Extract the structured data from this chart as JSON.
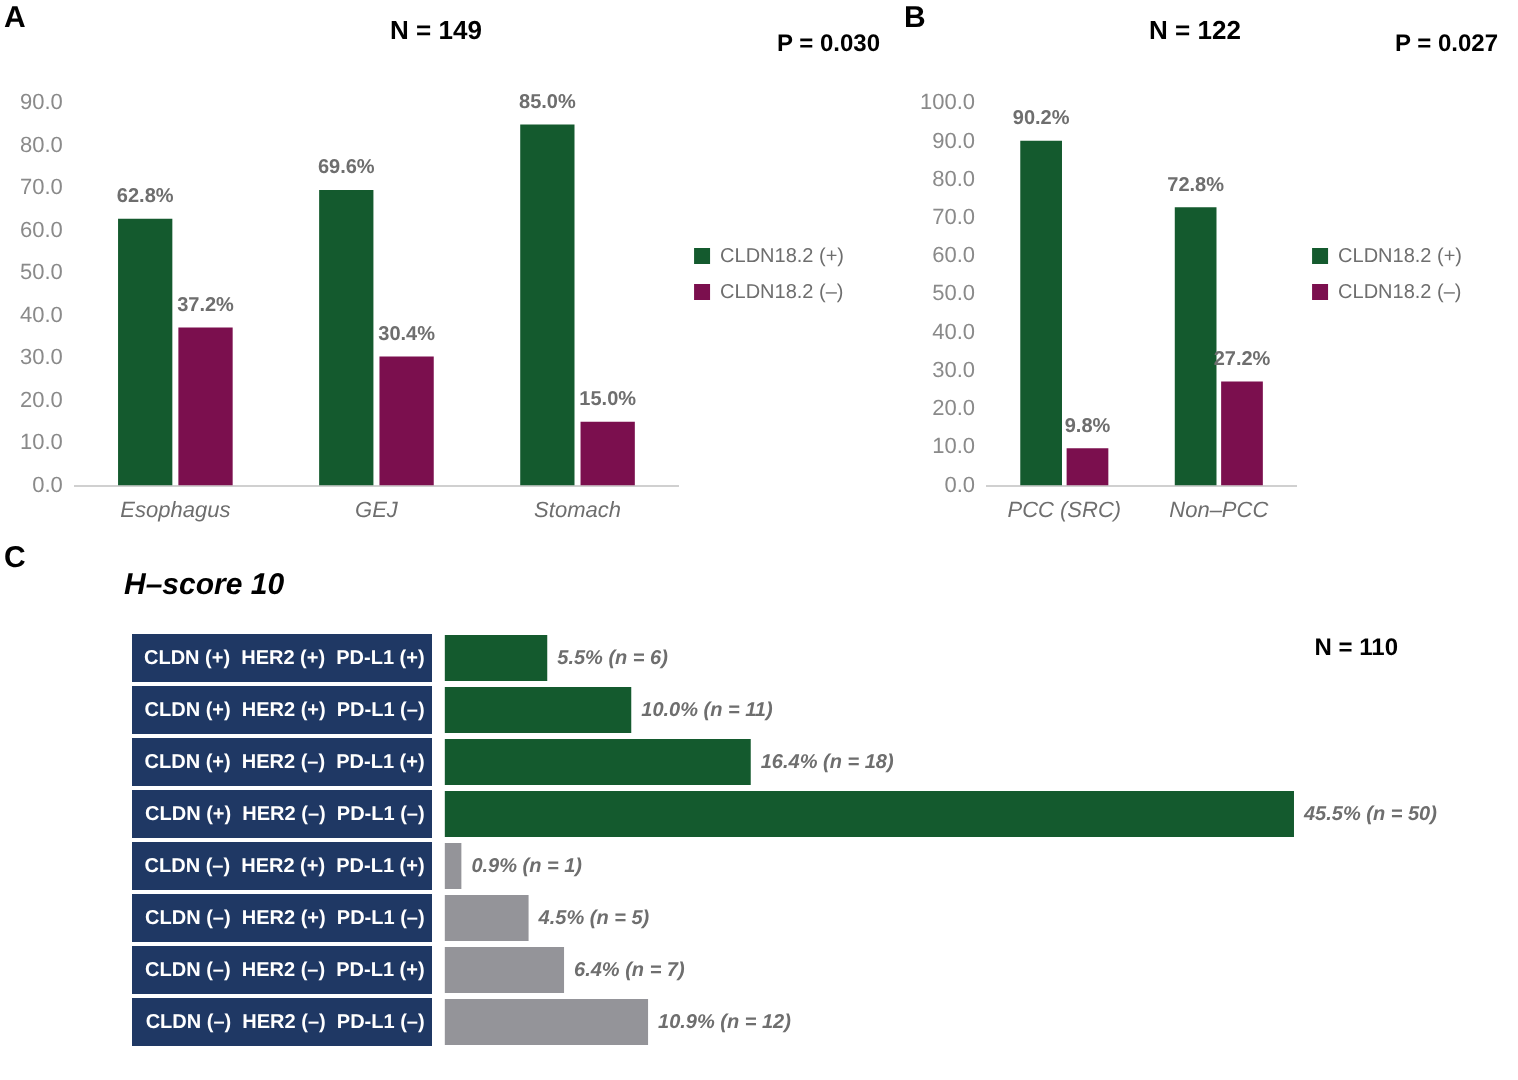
{
  "chart_data": [
    {
      "type": "bar",
      "title": "N = 149",
      "annotations": [
        "A",
        "P = 0.030"
      ],
      "categories": [
        "Esophagus",
        "GEJ",
        "Stomach"
      ],
      "series": [
        {
          "name": "CLDN18.2 (+)",
          "color": "#145a2e",
          "values": [
            62.8,
            69.6,
            85.0
          ],
          "value_labels": [
            "62.8%",
            "69.6%",
            "85.0%"
          ]
        },
        {
          "name": "CLDN18.2 (–)",
          "color": "#7b0f4e",
          "values": [
            37.2,
            30.4,
            15.0
          ],
          "value_labels": [
            "37.2%",
            "30.4%",
            "15.0%"
          ]
        }
      ],
      "ylim": [
        0,
        90
      ],
      "yticks": [
        {
          "value": 0,
          "label": "0.0"
        },
        {
          "value": 10,
          "label": "10.0"
        },
        {
          "value": 20,
          "label": "20.0"
        },
        {
          "value": 30,
          "label": "30.0"
        },
        {
          "value": 40,
          "label": "40.0"
        },
        {
          "value": 50,
          "label": "50.0"
        },
        {
          "value": 60,
          "label": "60.0"
        },
        {
          "value": 70,
          "label": "70.0"
        },
        {
          "value": 80,
          "label": "80.0"
        },
        {
          "value": 90,
          "label": "90.0"
        }
      ],
      "legend": "right"
    },
    {
      "type": "bar",
      "title": "N = 122",
      "annotations": [
        "B",
        "P = 0.027"
      ],
      "categories": [
        "PCC (SRC)",
        "Non–PCC"
      ],
      "series": [
        {
          "name": "CLDN18.2 (+)",
          "color": "#145a2e",
          "values": [
            90.2,
            72.8
          ],
          "value_labels": [
            "90.2%",
            "72.8%"
          ]
        },
        {
          "name": "CLDN18.2 (–)",
          "color": "#7b0f4e",
          "values": [
            9.8,
            27.2
          ],
          "value_labels": [
            "9.8%",
            "27.2%"
          ]
        }
      ],
      "ylim": [
        0,
        100
      ],
      "yticks": [
        {
          "value": 0,
          "label": "0.0"
        },
        {
          "value": 10,
          "label": "10.0"
        },
        {
          "value": 20,
          "label": "20.0"
        },
        {
          "value": 30,
          "label": "30.0"
        },
        {
          "value": 40,
          "label": "40.0"
        },
        {
          "value": 50,
          "label": "50.0"
        },
        {
          "value": 60,
          "label": "60.0"
        },
        {
          "value": 70,
          "label": "70.0"
        },
        {
          "value": 80,
          "label": "80.0"
        },
        {
          "value": 90,
          "label": "90.0"
        },
        {
          "value": 100,
          "label": "100.0"
        }
      ],
      "legend": "right"
    },
    {
      "type": "bar",
      "orientation": "horizontal",
      "title": "H–score 10",
      "annotations": [
        "C",
        "N = 110"
      ],
      "categories": [
        "CLDN (+)  HER2 (+)  PD-L1 (+)",
        "CLDN (+)  HER2 (+)  PD-L1 (–)",
        "CLDN (+)  HER2 (–)  PD-L1 (+)",
        "CLDN (+)  HER2 (–)  PD-L1 (–)",
        "CLDN (–)  HER2 (+)  PD-L1 (+)",
        "CLDN (–)  HER2 (+)  PD-L1 (–)",
        "CLDN (–)  HER2 (–)  PD-L1 (+)",
        "CLDN (–)  HER2 (–)  PD-L1 (–)"
      ],
      "values": [
        5.5,
        10.0,
        16.4,
        45.5,
        0.9,
        4.5,
        6.4,
        10.9
      ],
      "colors": [
        "#145a2e",
        "#145a2e",
        "#145a2e",
        "#145a2e",
        "#949499",
        "#949499",
        "#949499",
        "#949499"
      ],
      "value_labels": [
        "5.5% (n = 6)",
        "10.0% (n = 11)",
        "16.4% (n = 18)",
        "45.5% (n = 50)",
        "0.9% (n = 1)",
        "4.5% (n = 5)",
        "6.4% (n = 7)",
        "10.9% (n = 12)"
      ],
      "tick_labels": "y"
    }
  ]
}
